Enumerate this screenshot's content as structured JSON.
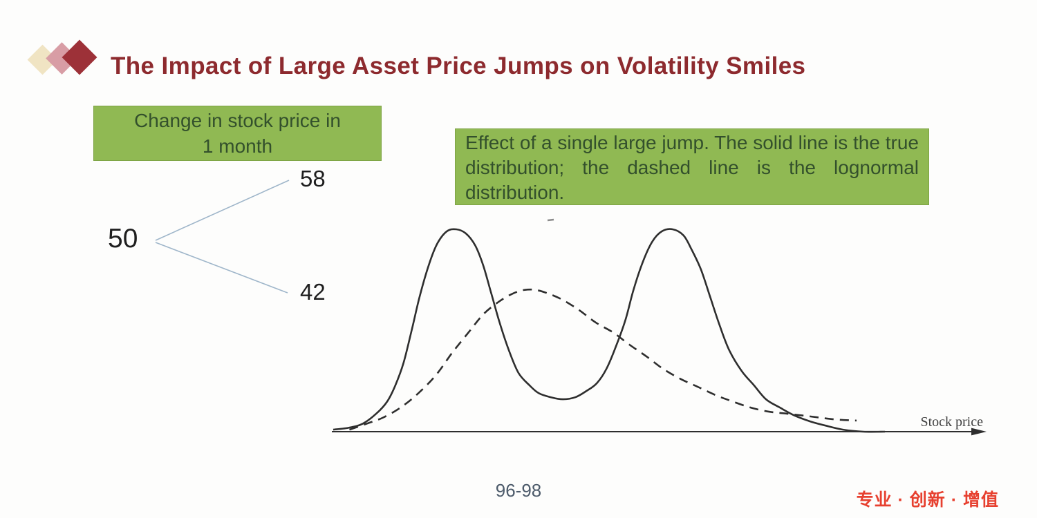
{
  "slide": {
    "title": "The Impact of Large Asset Price Jumps on Volatility Smiles",
    "page_label": "96-98",
    "footer_cn": "专业 · 创新 · 增值"
  },
  "left_box": {
    "line1": "Change in stock price in",
    "line2": "1 month"
  },
  "right_box": {
    "text": "Effect of a single large jump. The solid line is the true distribution; the dashed line is the lognormal distribution."
  },
  "tree": {
    "root": "50",
    "up": "58",
    "down": "42"
  },
  "chart_data": {
    "type": "line",
    "title": "",
    "xlabel": "Stock price",
    "ylabel": "",
    "xlim": [
      32.5,
      81
    ],
    "ylim": [
      0,
      1.1
    ],
    "grid": false,
    "legend": "none",
    "series": [
      {
        "name": "True distribution (solid line, bimodal with modes near 42 and 58)",
        "style": "solid",
        "x": [
          32.9,
          34.1,
          35.1,
          36.1,
          36.9,
          37.5,
          38.1,
          38.7,
          39.3,
          40.0,
          40.6,
          41.3,
          42.0,
          42.7,
          43.4,
          44.0,
          44.6,
          45.2,
          45.9,
          46.6,
          47.4,
          48.1,
          49.0,
          49.9,
          50.8,
          51.6,
          52.4,
          53.1,
          53.8,
          54.5,
          55.1,
          55.8,
          56.5,
          57.2,
          58.0,
          58.8,
          59.4,
          60.1,
          60.8,
          61.5,
          62.2,
          63.1,
          64.0,
          64.9,
          65.9,
          67.0,
          68.2,
          69.3,
          70.6,
          72.1,
          73.7
        ],
        "y": [
          0.01,
          0.02,
          0.04,
          0.09,
          0.15,
          0.23,
          0.34,
          0.5,
          0.67,
          0.83,
          0.93,
          0.99,
          1.0,
          0.98,
          0.92,
          0.82,
          0.68,
          0.54,
          0.4,
          0.29,
          0.23,
          0.19,
          0.17,
          0.16,
          0.17,
          0.2,
          0.24,
          0.31,
          0.42,
          0.55,
          0.7,
          0.84,
          0.94,
          0.99,
          1.0,
          0.97,
          0.9,
          0.8,
          0.66,
          0.52,
          0.4,
          0.3,
          0.23,
          0.16,
          0.12,
          0.08,
          0.05,
          0.03,
          0.01,
          0.0,
          0.0
        ]
      },
      {
        "name": "Lognormal distribution (dashed line, mode near 47)",
        "style": "dashed",
        "x": [
          34.1,
          35.4,
          36.6,
          37.9,
          39.2,
          40.5,
          41.7,
          42.9,
          44.0,
          45.1,
          46.1,
          47.0,
          47.9,
          48.9,
          49.9,
          51.1,
          52.3,
          53.6,
          54.8,
          56.1,
          57.3,
          58.6,
          59.9,
          61.2,
          62.4,
          63.7,
          65.0,
          66.3,
          67.6,
          68.8,
          70.1,
          71.6
        ],
        "y": [
          0.01,
          0.04,
          0.07,
          0.12,
          0.19,
          0.28,
          0.39,
          0.49,
          0.58,
          0.64,
          0.68,
          0.7,
          0.7,
          0.68,
          0.65,
          0.6,
          0.54,
          0.49,
          0.43,
          0.37,
          0.31,
          0.26,
          0.22,
          0.18,
          0.15,
          0.12,
          0.1,
          0.09,
          0.08,
          0.07,
          0.06,
          0.055
        ]
      }
    ]
  },
  "colors": {
    "title_red": "#8d2a2e",
    "green_box_bg": "#90b953",
    "green_box_text": "#33502c",
    "tree_line": "#9fb6ca",
    "curve": "#2e2e2e",
    "footer_cn_red": "#e7402f",
    "page_label": "#4d5b6b",
    "diamond_cream": "#f0e4c3",
    "diamond_pink": "#d89da5",
    "diamond_dark_red": "#9d3138"
  }
}
